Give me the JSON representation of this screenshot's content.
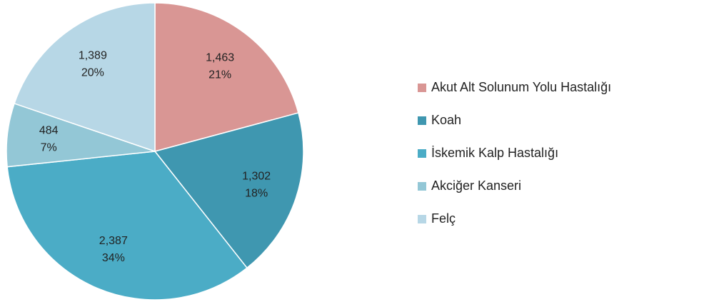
{
  "chart_data": {
    "type": "pie",
    "categories": [
      "Akut Alt Solunum Yolu Hastalığı",
      "Koah",
      "İskemik Kalp Hastalığı",
      "Akciğer Kanseri",
      "Felç"
    ],
    "values": [
      1463,
      1302,
      2387,
      484,
      1389
    ],
    "value_labels": [
      "1,463",
      "1,302",
      "2,387",
      "484",
      "1,389"
    ],
    "percents": [
      21,
      18,
      34,
      7,
      20
    ],
    "percent_labels": [
      "21%",
      "18%",
      "34%",
      "7%",
      "20%"
    ],
    "colors": [
      "#d99694",
      "#3f97b0",
      "#4bacc6",
      "#93c7d6",
      "#b7d7e6"
    ],
    "legend": "right"
  }
}
